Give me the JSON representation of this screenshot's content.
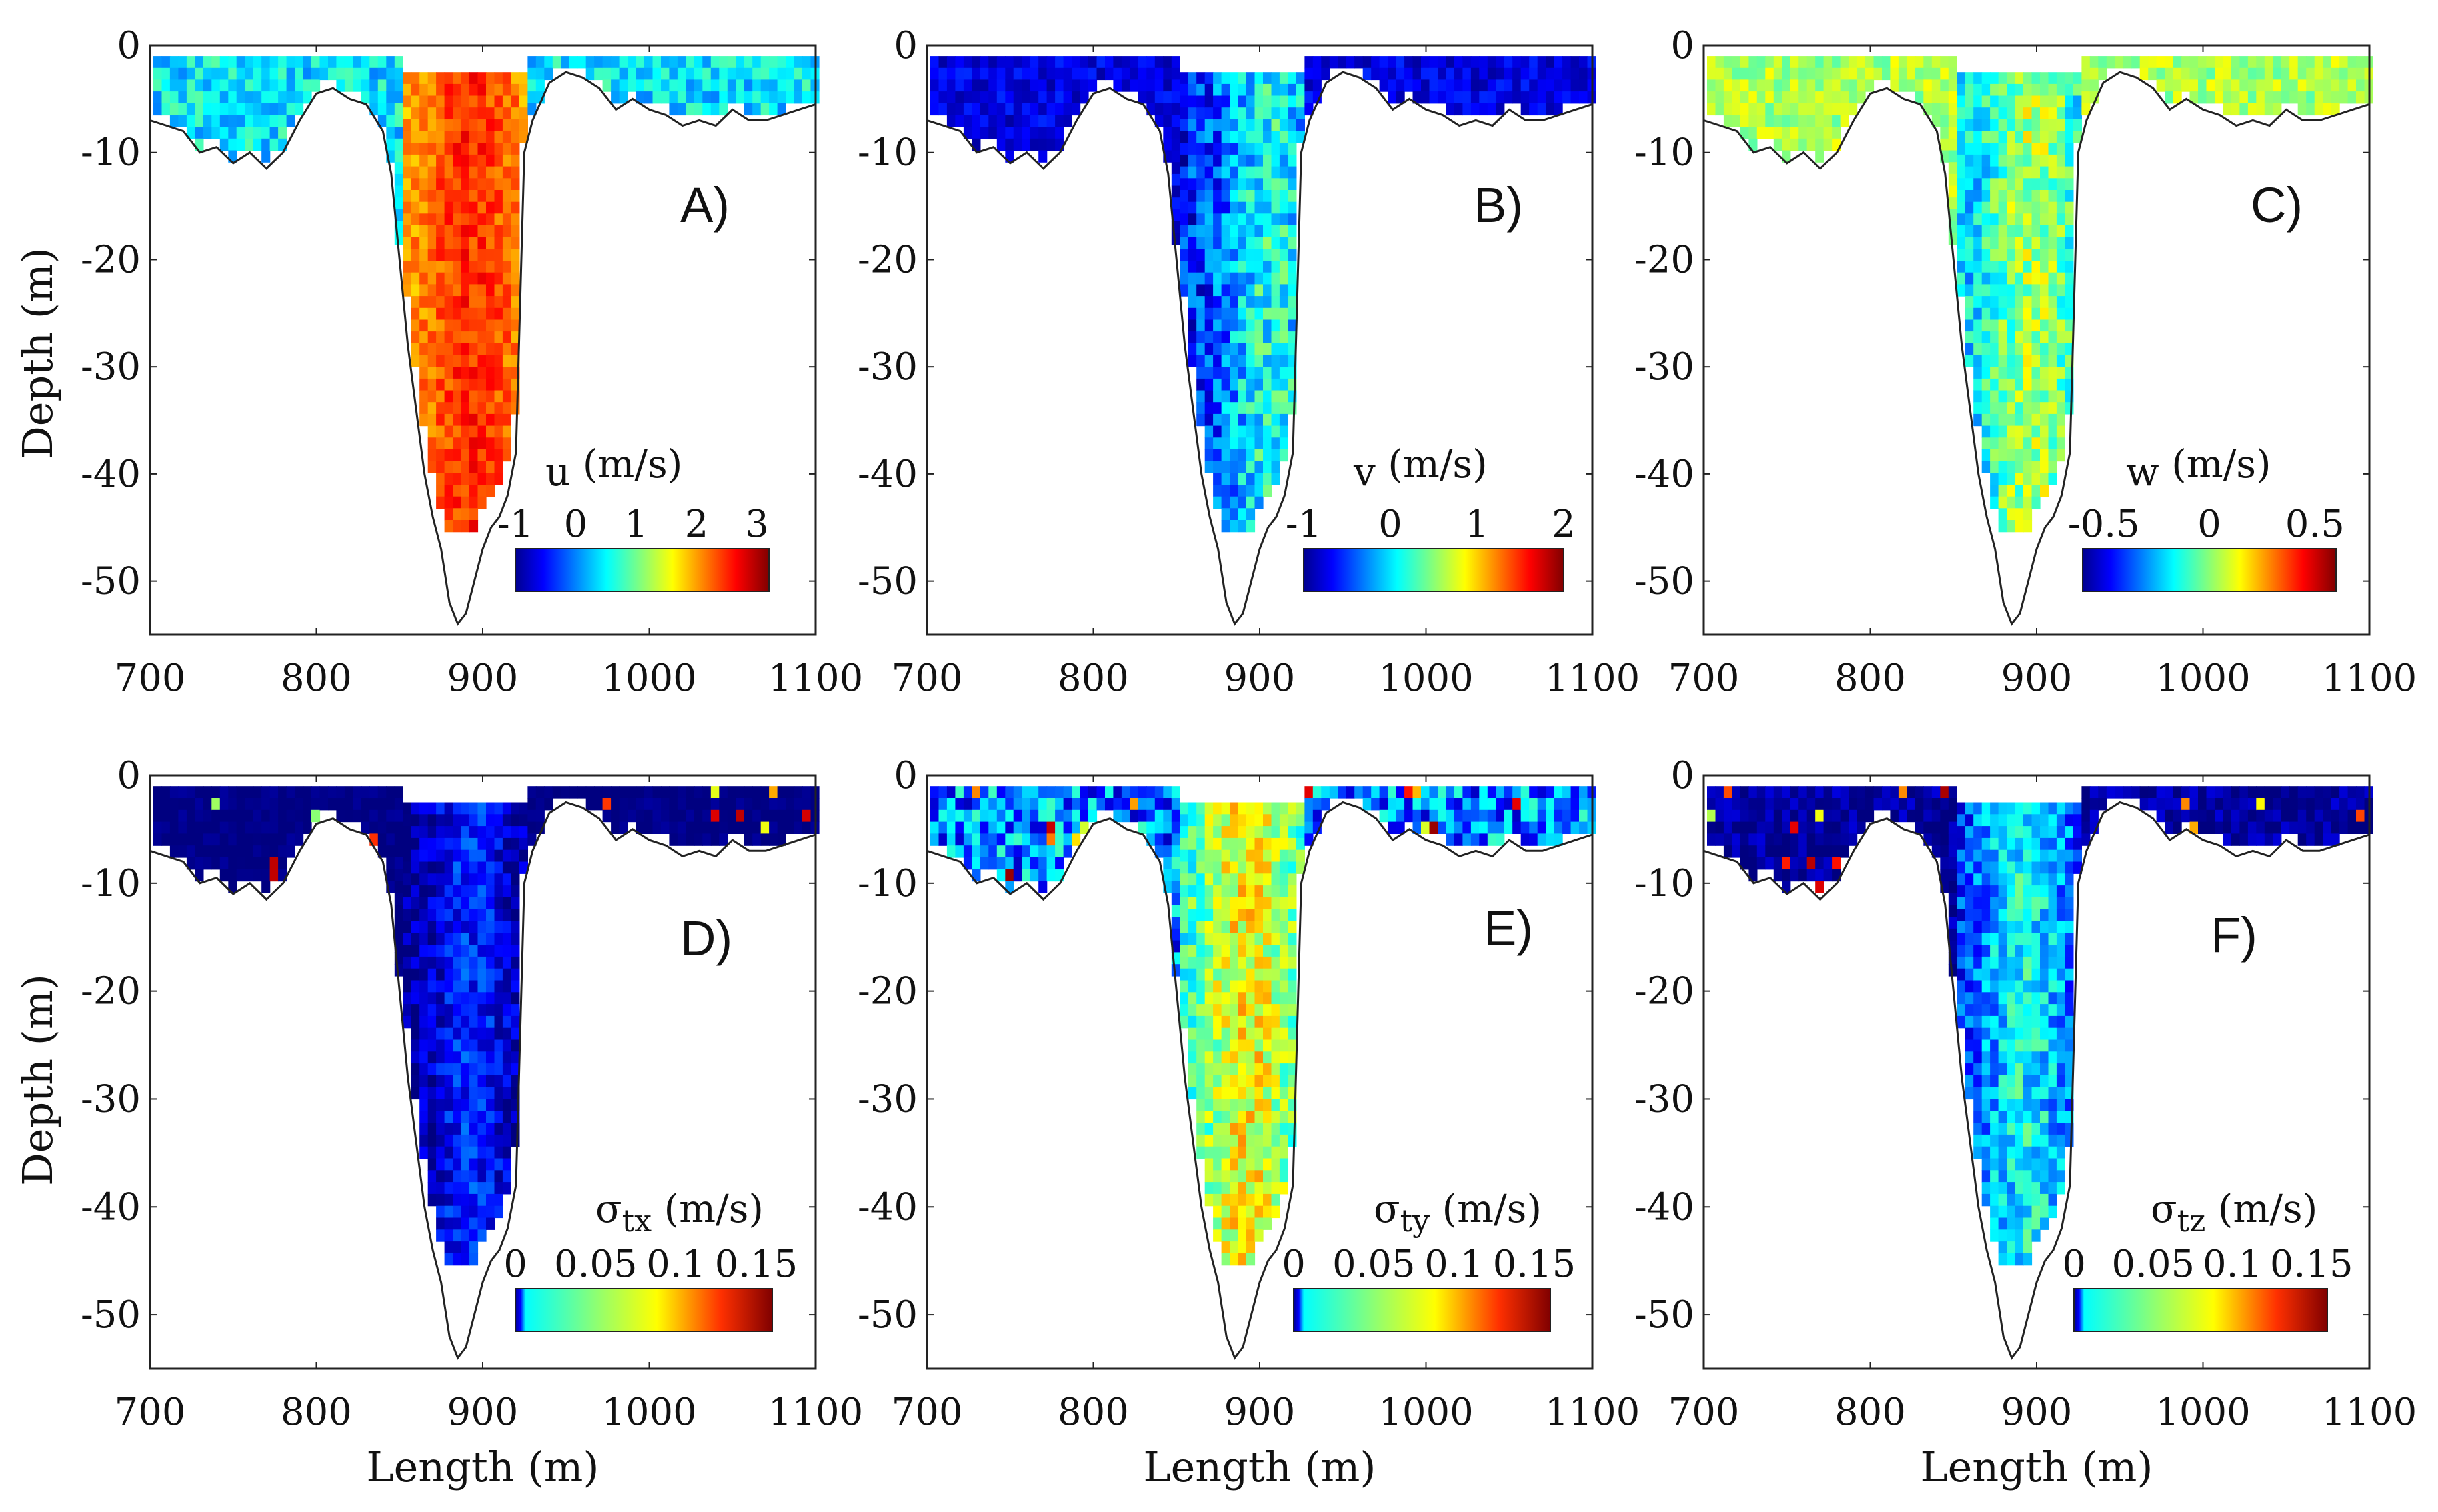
{
  "figure": {
    "xlabel": "Length (m)",
    "ylabel": "Depth (m)"
  },
  "chart_data": [
    {
      "type": "heatmap",
      "panel": "A)",
      "variable": "u",
      "unit": "(m/s)",
      "subscript": "",
      "colorbar": {
        "ticks": [
          "-1",
          "0",
          "1",
          "2",
          "3"
        ],
        "range": [
          -1,
          3.2
        ],
        "colormap": "jet"
      },
      "xlim": [
        700,
        1100
      ],
      "ylim": [
        -55,
        0
      ],
      "xticks": [
        "700",
        "800",
        "900",
        "1000",
        "1100"
      ],
      "yticks": [
        "0",
        "-10",
        "-20",
        "-30",
        "-40",
        "-50"
      ],
      "field": {
        "shallow_mean": 0.5,
        "shallow_var": 0.9,
        "core_mean": 2.2,
        "core_var": 0.6,
        "core_x": 890
      },
      "show_ylabel": true,
      "show_xlabel": false
    },
    {
      "type": "heatmap",
      "panel": "B)",
      "variable": "v",
      "unit": "(m/s)",
      "subscript": "",
      "colorbar": {
        "ticks": [
          "-1",
          "0",
          "1",
          "2"
        ],
        "range": [
          -1,
          2
        ],
        "colormap": "jet"
      },
      "xlim": [
        700,
        1100
      ],
      "ylim": [
        -55,
        0
      ],
      "xticks": [
        "700",
        "800",
        "900",
        "1000",
        "1100"
      ],
      "yticks": [
        "0",
        "-10",
        "-20",
        "-30",
        "-40",
        "-50"
      ],
      "field": {
        "shallow_mean": -0.7,
        "shallow_var": 0.4,
        "core_mean": -0.2,
        "core_var": 0.8,
        "core_x": 905
      },
      "show_ylabel": false,
      "show_xlabel": false
    },
    {
      "type": "heatmap",
      "panel": "C)",
      "variable": "w",
      "unit": "(m/s)",
      "subscript": "",
      "colorbar": {
        "ticks": [
          "-0.5",
          "0",
          "0.5"
        ],
        "range": [
          -0.6,
          0.6
        ],
        "colormap": "jet"
      },
      "xlim": [
        700,
        1100
      ],
      "ylim": [
        -55,
        0
      ],
      "xticks": [
        "700",
        "800",
        "900",
        "1000",
        "1100"
      ],
      "yticks": [
        "0",
        "-10",
        "-20",
        "-30",
        "-40",
        "-50"
      ],
      "field": {
        "shallow_mean": 0.05,
        "shallow_var": 0.2,
        "core_mean": -0.1,
        "core_var": 0.3,
        "core_x": 895
      },
      "show_ylabel": false,
      "show_xlabel": false
    },
    {
      "type": "heatmap",
      "panel": "D)",
      "variable": "σ",
      "unit": "(m/s)",
      "subscript": "tx",
      "colorbar": {
        "ticks": [
          "0",
          "0.05",
          "0.1",
          "0.15"
        ],
        "range": [
          0,
          0.16
        ],
        "colormap": "jet-partial"
      },
      "xlim": [
        700,
        1100
      ],
      "ylim": [
        -55,
        0
      ],
      "xticks": [
        "700",
        "800",
        "900",
        "1000",
        "1100"
      ],
      "yticks": [
        "0",
        "-10",
        "-20",
        "-30",
        "-40",
        "-50"
      ],
      "field": {
        "shallow_mean": 0.0,
        "shallow_var": 0.01,
        "core_mean": 0.01,
        "core_var": 0.03,
        "core_x": 890
      },
      "show_ylabel": true,
      "show_xlabel": true
    },
    {
      "type": "heatmap",
      "panel": "E)",
      "variable": "σ",
      "unit": "(m/s)",
      "subscript": "ty",
      "colorbar": {
        "ticks": [
          "0",
          "0.05",
          "0.1",
          "0.15"
        ],
        "range": [
          0,
          0.16
        ],
        "colormap": "jet-partial"
      },
      "xlim": [
        700,
        1100
      ],
      "ylim": [
        -55,
        0
      ],
      "xticks": [
        "700",
        "800",
        "900",
        "1000",
        "1100"
      ],
      "yticks": [
        "0",
        "-10",
        "-20",
        "-30",
        "-40",
        "-50"
      ],
      "field": {
        "shallow_mean": 0.04,
        "shallow_var": 0.06,
        "core_mean": 0.08,
        "core_var": 0.04,
        "core_x": 890
      },
      "show_ylabel": false,
      "show_xlabel": true
    },
    {
      "type": "heatmap",
      "panel": "F)",
      "variable": "σ",
      "unit": "(m/s)",
      "subscript": "tz",
      "colorbar": {
        "ticks": [
          "0",
          "0.05",
          "0.1",
          "0.15"
        ],
        "range": [
          0,
          0.16
        ],
        "colormap": "jet-partial"
      },
      "xlim": [
        700,
        1100
      ],
      "ylim": [
        -55,
        0
      ],
      "xticks": [
        "700",
        "800",
        "900",
        "1000",
        "1100"
      ],
      "yticks": [
        "0",
        "-10",
        "-20",
        "-30",
        "-40",
        "-50"
      ],
      "field": {
        "shallow_mean": 0.005,
        "shallow_var": 0.02,
        "core_mean": 0.04,
        "core_var": 0.04,
        "core_x": 890
      },
      "show_ylabel": false,
      "show_xlabel": true
    }
  ],
  "bathymetry": {
    "x": [
      700,
      710,
      720,
      730,
      740,
      750,
      760,
      770,
      780,
      790,
      800,
      810,
      820,
      830,
      840,
      845,
      850,
      855,
      860,
      865,
      870,
      875,
      880,
      885,
      890,
      895,
      900,
      905,
      910,
      915,
      920,
      925,
      930,
      940,
      950,
      960,
      970,
      980,
      990,
      1000,
      1010,
      1020,
      1030,
      1040,
      1050,
      1060,
      1070,
      1080,
      1090,
      1100
    ],
    "depth": [
      -7,
      -7.5,
      -8,
      -10,
      -9.5,
      -11,
      -10,
      -11.5,
      -10,
      -7,
      -4.5,
      -4,
      -5,
      -5.5,
      -8,
      -12,
      -20,
      -28,
      -34,
      -40,
      -44,
      -47,
      -52,
      -54,
      -53,
      -50,
      -47,
      -45,
      -44,
      -42,
      -38,
      -10,
      -7,
      -3.5,
      -2.5,
      -3,
      -4,
      -6,
      -5,
      -6,
      -6.5,
      -7.5,
      -7,
      -7.5,
      -6,
      -7,
      -7,
      -6.5,
      -6,
      -5.5
    ]
  }
}
